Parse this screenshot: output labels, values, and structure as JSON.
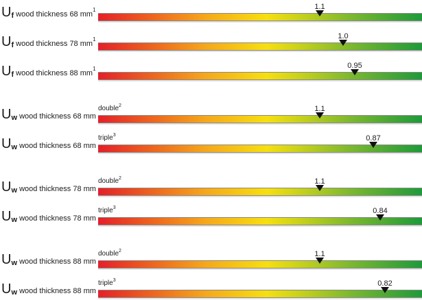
{
  "chart_data": {
    "type": "bar",
    "scale_note": "",
    "rows": [
      {
        "u": "U",
        "sub": "f",
        "desc": " wood thickness 68 mm",
        "sup": "1",
        "glazing": "",
        "glazing_sup": "",
        "value": "1.1"
      },
      {
        "u": "U",
        "sub": "f",
        "desc": " wood thickness 78 mm",
        "sup": "1",
        "glazing": "",
        "glazing_sup": "",
        "value": "1.0"
      },
      {
        "u": "U",
        "sub": "f",
        "desc": " wood thickness 88 mm",
        "sup": "1",
        "glazing": "",
        "glazing_sup": "",
        "value": "0.95"
      },
      {
        "u": "U",
        "sub": "w",
        "desc": " wood thickness 68 mm",
        "sup": "",
        "glazing": "double",
        "glazing_sup": "2",
        "value": "1.1"
      },
      {
        "u": "U",
        "sub": "w",
        "desc": " wood thickness 68 mm",
        "sup": "",
        "glazing": "triple",
        "glazing_sup": "3",
        "value": "0.87"
      },
      {
        "u": "U",
        "sub": "w",
        "desc": " wood thickness 78 mm",
        "sup": "",
        "glazing": "double",
        "glazing_sup": "2",
        "value": "1.1"
      },
      {
        "u": "U",
        "sub": "w",
        "desc": " wood thickness 78 mm",
        "sup": "",
        "glazing": "triple",
        "glazing_sup": "3",
        "value": "0.84"
      },
      {
        "u": "U",
        "sub": "w",
        "desc": " wood thickness 88 mm",
        "sup": "",
        "glazing": "double",
        "glazing_sup": "2",
        "value": "1.1"
      },
      {
        "u": "U",
        "sub": "w",
        "desc": " wood thickness 88 mm",
        "sup": "",
        "glazing": "triple",
        "glazing_sup": "3",
        "value": "0.82"
      }
    ],
    "colors": {
      "bad": "#e3202a",
      "mid": "#f7df10",
      "good": "#1e9a3a",
      "marker": "#111111"
    }
  }
}
